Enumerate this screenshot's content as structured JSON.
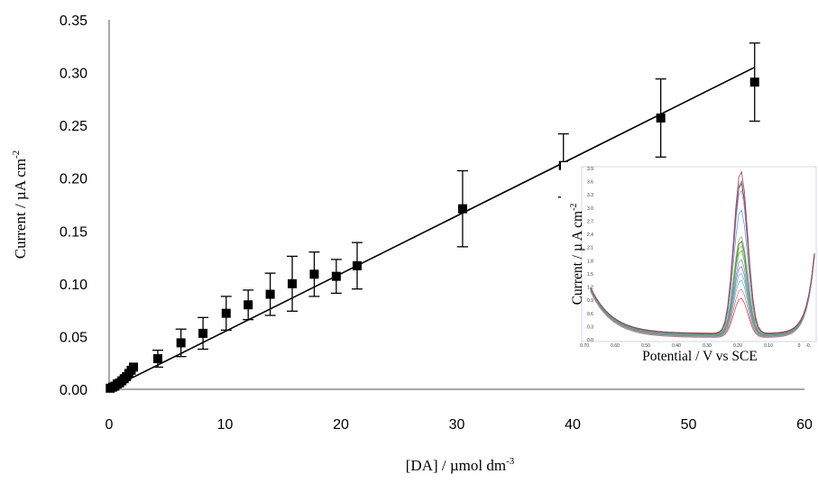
{
  "chart_data": [
    {
      "type": "scatter",
      "title": "",
      "xlabel": "[DA] / µmol dm",
      "xlabel_sup": "-3",
      "ylabel": "Current / µA cm",
      "ylabel_sup": "-2",
      "xlim": [
        0,
        60
      ],
      "ylim": [
        0,
        0.35
      ],
      "x_ticks": [
        0,
        10,
        20,
        30,
        40,
        50,
        60
      ],
      "y_ticks": [
        "0.00",
        "0.05",
        "0.10",
        "0.15",
        "0.20",
        "0.25",
        "0.30",
        "0.35"
      ],
      "grid": false,
      "legend": "none",
      "marker": "filled-square",
      "series": [
        {
          "x": [
            0.1,
            0.3,
            0.5,
            0.7,
            0.9,
            1.1,
            1.3,
            1.5,
            1.7,
            1.9,
            2.1,
            4.2,
            6.2,
            8.1,
            10.1,
            12.0,
            13.9,
            15.8,
            17.7,
            19.6,
            21.4,
            30.5,
            39.2,
            47.6,
            55.7
          ],
          "y": [
            0.001,
            0.002,
            0.003,
            0.005,
            0.006,
            0.008,
            0.01,
            0.012,
            0.015,
            0.018,
            0.021,
            0.029,
            0.044,
            0.053,
            0.072,
            0.08,
            0.09,
            0.1,
            0.109,
            0.107,
            0.117,
            0.171,
            0.212,
            0.257,
            0.291
          ],
          "err": [
            0,
            0,
            0,
            0,
            0,
            0,
            0,
            0,
            0,
            0,
            0,
            0.008,
            0.013,
            0.015,
            0.016,
            0.014,
            0.02,
            0.026,
            0.021,
            0.016,
            0.022,
            0.036,
            0.03,
            0.037,
            0.037
          ]
        }
      ],
      "fit_line": {
        "x": [
          0,
          55.7
        ],
        "y": [
          0.0,
          0.305
        ]
      }
    },
    {
      "type": "line",
      "title": "",
      "xlabel": "Potential / V vs SCE",
      "ylabel": "Current / µ A cm",
      "ylabel_sup": "-2",
      "x_ticks": [
        "0.70",
        "0.60",
        "0.50",
        "0.40",
        "0.30",
        "0.20",
        "0.10",
        "0",
        "-0."
      ],
      "y_ticks": [
        "0.0",
        "0.3",
        "0.6",
        "0.9",
        "1.2",
        "1.5",
        "1.8",
        "2.1",
        "2.4",
        "2.7",
        "3.0",
        "3.3",
        "3.6",
        "3.9"
      ],
      "xlim": [
        0.7,
        -0.05
      ],
      "ylim": [
        0,
        3.9
      ],
      "peak_potential": 0.19,
      "peak_heights": [
        0.9,
        1.1,
        1.3,
        1.45,
        1.6,
        1.75,
        1.95,
        2.05,
        2.15,
        2.25,
        2.85,
        3.3,
        3.45,
        3.5,
        3.7
      ],
      "series_colors": [
        "#d9485f",
        "#e07a7a",
        "#6fb7b3",
        "#57c0c9",
        "#9a6bc2",
        "#7f8fd8",
        "#4ea84e",
        "#8bc34a",
        "#2f6f3f",
        "#b0b06a",
        "#5aa0d8",
        "#c28ad3",
        "#3c3c3c",
        "#777777",
        "#a04060"
      ]
    }
  ]
}
